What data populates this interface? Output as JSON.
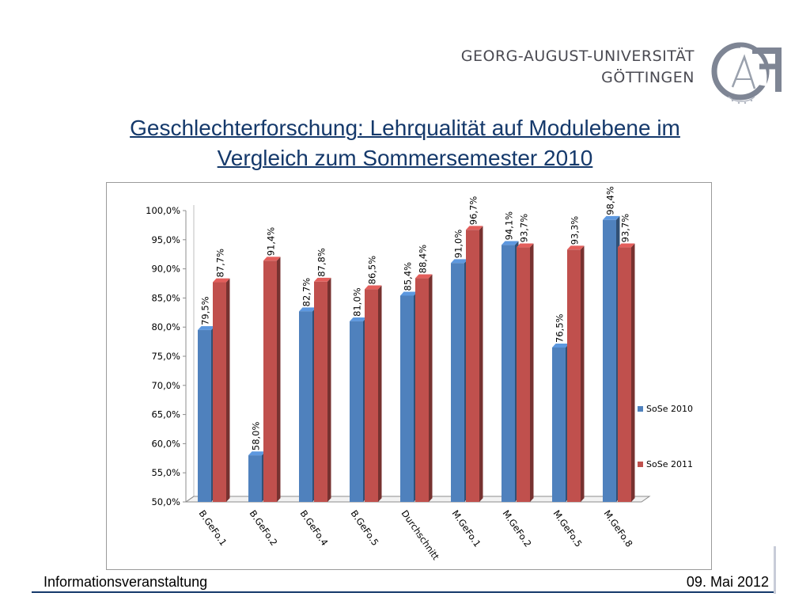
{
  "header": {
    "university_line1": "GEORG-AUGUST-UNIVERSITÄT",
    "university_line2": "GÖTTINGEN",
    "logo": "georg-august-university-seal-logo"
  },
  "slide": {
    "title_line1": "Geschlechterforschung: Lehrqualität auf Modulebene im",
    "title_line2": "Vergleich zum Sommersemester 2010"
  },
  "footer": {
    "left": "Informationsveranstaltung",
    "right": "09. Mai 2012"
  },
  "colors": {
    "title": "#15396b",
    "series_2010": "#4f81bd",
    "series_2011": "#c0504d"
  },
  "chart_data": {
    "type": "bar",
    "title": "",
    "xlabel": "",
    "ylabel": "",
    "categories": [
      "B.GeFo.1",
      "B.GeFo.2",
      "B.GeFo.4",
      "B.GeFo.5",
      "Durchschnitt",
      "M.GeFo.1",
      "M.GeFo.2",
      "M.GeFo.5",
      "M.GeFo.8"
    ],
    "series": [
      {
        "name": "SoSe 2010",
        "values": [
          79.5,
          58.0,
          82.7,
          81.0,
          85.4,
          91.0,
          94.1,
          76.5,
          98.4
        ],
        "labels": [
          "79,5%",
          "58,0%",
          "82,7%",
          "81,0%",
          "85,4%",
          "91,0%",
          "94,1%",
          "76,5%",
          "98,4%"
        ],
        "color": "#4f81bd"
      },
      {
        "name": "SoSe 2011",
        "values": [
          87.7,
          91.4,
          87.8,
          86.5,
          88.4,
          96.7,
          93.7,
          93.3,
          93.7
        ],
        "labels": [
          "87,7%",
          "91,4%",
          "87,8%",
          "86,5%",
          "88,4%",
          "96,7%",
          "93,7%",
          "93,3%",
          "93,7%"
        ],
        "color": "#c0504d"
      }
    ],
    "ylim": [
      50,
      100
    ],
    "yticks": [
      "50,0%",
      "55,0%",
      "60,0%",
      "65,0%",
      "70,0%",
      "75,0%",
      "80,0%",
      "85,0%",
      "90,0%",
      "95,0%",
      "100,0%"
    ],
    "grid": false,
    "legend": "right"
  }
}
